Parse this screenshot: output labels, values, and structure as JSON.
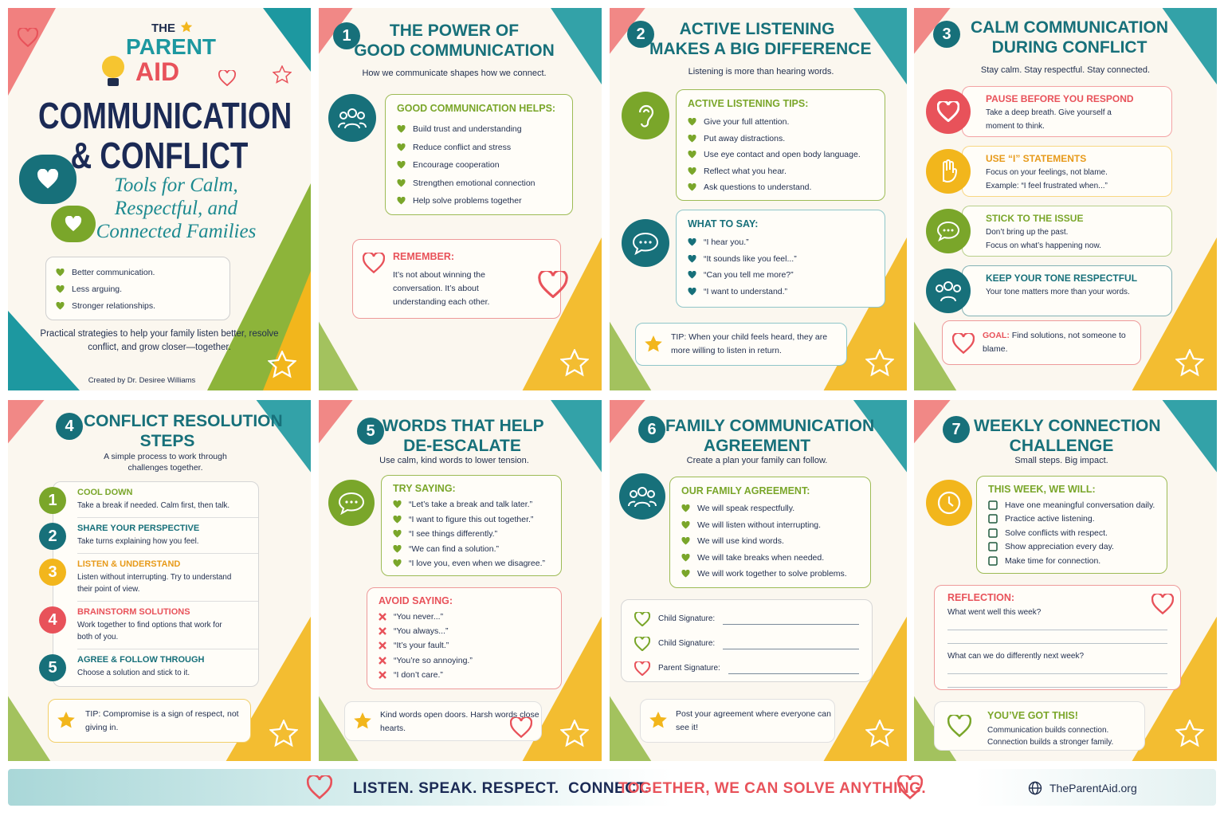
{
  "cover": {
    "brand": {
      "the": "THE",
      "parent": "PARENT",
      "aid": "AID"
    },
    "title": [
      "COMMUNICATION",
      "& CONFLICT"
    ],
    "tagline": [
      "Tools for Calm,",
      "Respectful, and",
      "Connected Families"
    ],
    "benefits": [
      "Better communication.",
      "Less arguing.",
      "Stronger relationships."
    ],
    "description": "Practical strategies to help your family listen better, resolve conflict, and grow closer—together.",
    "credit": "Created by Dr. Desiree Williams"
  },
  "panels": [
    {
      "number": "1",
      "title": [
        "THE POWER OF",
        "GOOD COMMUNICATION"
      ],
      "subtitle": "How we communicate shapes how we connect.",
      "helps": {
        "heading": "GOOD COMMUNICATION HELPS:",
        "items": [
          "Build trust and understanding",
          "Reduce conflict and stress",
          "Encourage cooperation",
          "Strengthen emotional connection",
          "Help solve problems together"
        ]
      },
      "remember": {
        "heading": "REMEMBER:",
        "text": "It’s not about winning the conversation. It’s about understanding each other."
      }
    },
    {
      "number": "2",
      "title": [
        "ACTIVE LISTENING",
        "MAKES A BIG DIFFERENCE"
      ],
      "subtitle": "Listening is more than hearing words.",
      "tips": {
        "heading": "ACTIVE LISTENING TIPS:",
        "items": [
          "Give your full attention.",
          "Put away distractions.",
          "Use eye contact and open body language.",
          "Reflect what you hear.",
          "Ask questions to understand."
        ]
      },
      "say": {
        "heading": "WHAT TO SAY:",
        "items": [
          "“I hear you.”",
          "“It sounds like you feel...”",
          "“Can you tell me more?”",
          "“I want to understand.”"
        ]
      },
      "tip": "TIP: When your child feels heard, they are more willing to listen in return."
    },
    {
      "number": "3",
      "title": [
        "CALM COMMUNICATION",
        "DURING CONFLICT"
      ],
      "subtitle": "Stay calm. Stay respectful. Stay connected.",
      "items": [
        {
          "heading": "PAUSE BEFORE YOU RESPOND",
          "lines": [
            "Take a deep breath. Give yourself a",
            "moment to think."
          ]
        },
        {
          "heading": "USE “I” STATEMENTS",
          "lines": [
            "Focus on your feelings, not blame.",
            "Example: “I feel frustrated when...”"
          ]
        },
        {
          "heading": "STICK TO THE ISSUE",
          "lines": [
            "Don’t bring up the past.",
            "Focus on what’s happening now."
          ]
        },
        {
          "heading": "KEEP YOUR TONE RESPECTFUL",
          "lines": [
            "Your tone matters more than your words."
          ]
        }
      ],
      "goal": {
        "label": "GOAL:",
        "text": "Find solutions, not someone to blame."
      }
    },
    {
      "number": "4",
      "title": [
        "CONFLICT RESOLUTION",
        "STEPS"
      ],
      "subtitle": "A simple process to work through challenges together.",
      "steps": [
        {
          "number": "1",
          "heading": "COOL DOWN",
          "text": "Take a break if needed. Calm first, then talk."
        },
        {
          "number": "2",
          "heading": "SHARE YOUR PERSPECTIVE",
          "text": "Take turns explaining how you feel."
        },
        {
          "number": "3",
          "heading": "LISTEN & UNDERSTAND",
          "text": "Listen without interrupting. Try to understand their point of view."
        },
        {
          "number": "4",
          "heading": "BRAINSTORM SOLUTIONS",
          "text": "Work together to find options that work for both of you."
        },
        {
          "number": "5",
          "heading": "AGREE & FOLLOW THROUGH",
          "text": "Choose a solution and stick to it."
        }
      ],
      "tip": "TIP: Compromise is a sign of respect, not giving in."
    },
    {
      "number": "5",
      "title": [
        "WORDS THAT HELP",
        "DE-ESCALATE"
      ],
      "subtitle": "Use calm, kind words to lower tension.",
      "try": {
        "heading": "TRY SAYING:",
        "items": [
          "“Let’s take a break and talk later.”",
          "“I want to figure this out together.”",
          "“I see things differently.”",
          "“We can find a solution.”",
          "“I love you, even when we disagree.”"
        ]
      },
      "avoid": {
        "heading": "AVOID SAYING:",
        "items": [
          "“You never...”",
          "“You always...”",
          "“It’s your fault.”",
          "“You’re so annoying.”",
          "“I don’t care.”"
        ]
      },
      "note": "Kind words open doors. Harsh words close hearts."
    },
    {
      "number": "6",
      "title": [
        "FAMILY COMMUNICATION",
        "AGREEMENT"
      ],
      "subtitle": "Create a plan your family can follow.",
      "agreement": {
        "heading": "OUR FAMILY AGREEMENT:",
        "items": [
          "We will speak respectfully.",
          "We will listen without interrupting.",
          "We will use kind words.",
          "We will take breaks when needed.",
          "We will work together to solve problems."
        ]
      },
      "signatures": [
        "Child Signature:",
        "Child Signature:",
        "Parent Signature:"
      ],
      "note": "Post your agreement where everyone can see it!"
    },
    {
      "number": "7",
      "title": [
        "WEEKLY CONNECTION",
        "CHALLENGE"
      ],
      "subtitle": "Small steps. Big impact.",
      "week": {
        "heading": "THIS WEEK, WE WILL:",
        "items": [
          "Have one meaningful conversation daily.",
          "Practice active listening.",
          "Solve conflicts with respect.",
          "Show appreciation every day.",
          "Make time for connection."
        ]
      },
      "reflection": {
        "heading": "REFLECTION:",
        "questions": [
          "What went well this week?",
          "What can we do differently next week?"
        ]
      },
      "closing": {
        "heading": "YOU’VE GOT THIS!",
        "lines": [
          "Communication builds connection.",
          "Connection builds a stronger family."
        ]
      }
    }
  ],
  "footer": {
    "slogan": "LISTEN. SPEAK. RESPECT.  CONNECT.",
    "tagline": "TOGETHER, WE CAN SOLVE ANYTHING.",
    "website": "TheParentAid.org"
  }
}
